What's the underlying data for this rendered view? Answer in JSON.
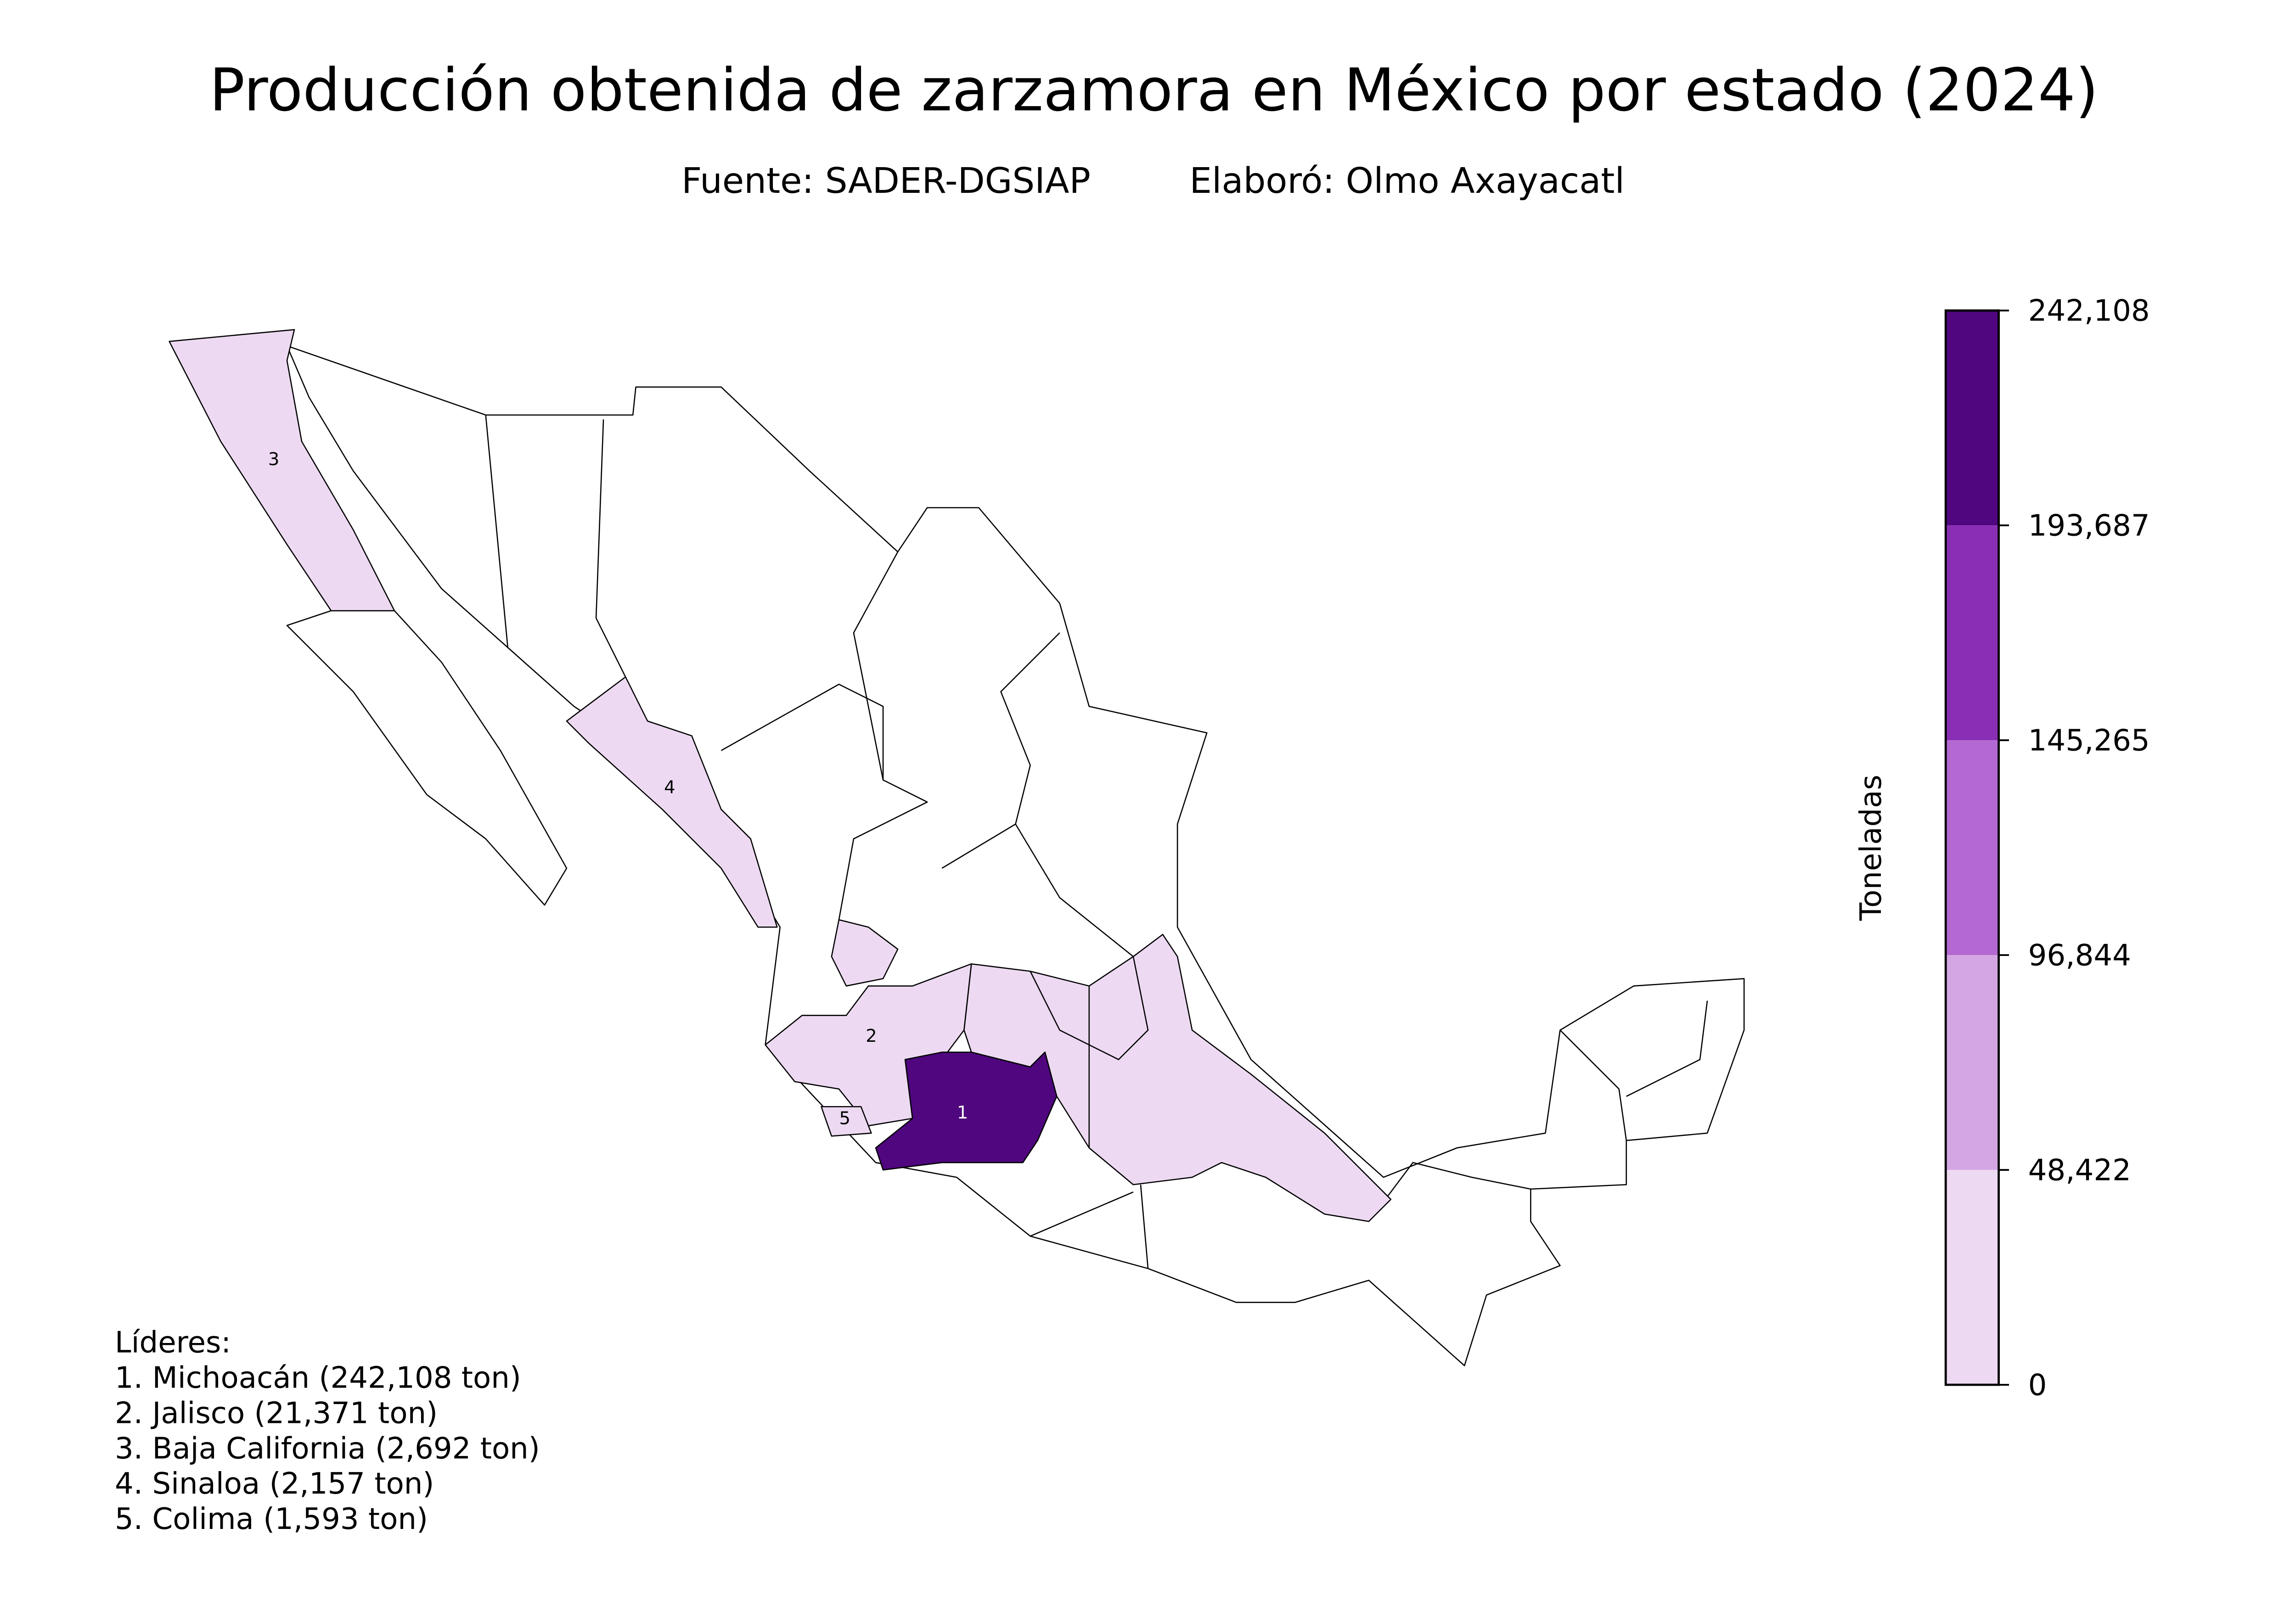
{
  "title": "Producción obtenida de zarzamora en México por estado (2024)",
  "subtitle": {
    "source": "Fuente: SADER-DGSIAP",
    "author": "Elaboró: Olmo Axayacatl"
  },
  "colorbar": {
    "label": "Toneladas",
    "ticks": [
      {
        "value": 0,
        "label": "0"
      },
      {
        "value": 48422,
        "label": "48,422"
      },
      {
        "value": 96844,
        "label": "96,844"
      },
      {
        "value": 145265,
        "label": "145,265"
      },
      {
        "value": 193687,
        "label": "193,687"
      },
      {
        "value": 242108,
        "label": "242,108"
      }
    ],
    "colors": [
      "#eddaf2",
      "#d4a6e4",
      "#b369d1",
      "#8b2eb6",
      "#4f067e"
    ]
  },
  "states": [
    {
      "label": "1",
      "value": 242108
    },
    {
      "label": "2",
      "value": 21371
    },
    {
      "label": "3",
      "value": 2692
    },
    {
      "label": "4",
      "value": 2157
    },
    {
      "label": "5",
      "value": 1593
    }
  ],
  "leaders": {
    "heading": "Líderes:",
    "items": [
      "1. Michoacán (242,108 ton)",
      "2. Jalisco (21,371 ton)",
      "3. Baja California (2,692 ton)",
      "4. Sinaloa (2,157 ton)",
      "5. Colima (1,593 ton)"
    ]
  }
}
